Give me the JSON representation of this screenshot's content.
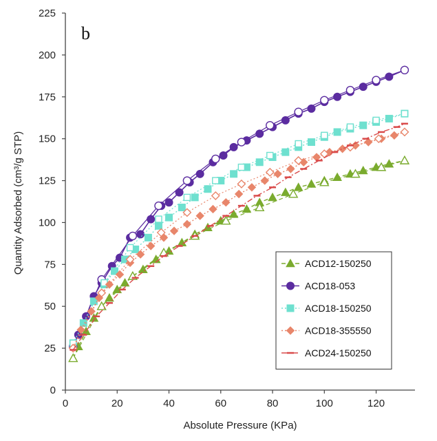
{
  "chart_data": {
    "type": "line",
    "panel_label": "b",
    "xlabel": "Absolute Pressure (KPa)",
    "ylabel": "Quantity Adsorbed (cm³/g STP)",
    "xlim": [
      0,
      135
    ],
    "ylim": [
      0,
      225
    ],
    "xticks": [
      0,
      20,
      40,
      60,
      80,
      100,
      120
    ],
    "yticks": [
      0,
      25,
      50,
      75,
      100,
      125,
      150,
      175,
      200,
      225
    ],
    "grid": false,
    "legend_position": "bottom-right",
    "series": [
      {
        "name": "ACD12-150250",
        "color": "#7aab2e",
        "marker": "triangle",
        "line_style": "dash",
        "adsorption": [
          [
            3,
            19
          ],
          [
            5,
            26
          ],
          [
            8,
            35
          ],
          [
            11,
            43
          ],
          [
            14,
            50
          ],
          [
            17,
            55
          ],
          [
            20,
            60
          ],
          [
            23,
            64
          ],
          [
            26,
            68
          ],
          [
            30,
            72
          ],
          [
            35,
            78
          ],
          [
            40,
            83
          ],
          [
            45,
            88
          ],
          [
            50,
            93
          ],
          [
            55,
            97
          ],
          [
            60,
            101
          ],
          [
            65,
            105
          ],
          [
            70,
            108
          ],
          [
            75,
            112
          ],
          [
            80,
            115
          ],
          [
            85,
            118
          ],
          [
            90,
            121
          ],
          [
            95,
            123
          ],
          [
            100,
            125
          ],
          [
            105,
            127
          ],
          [
            110,
            129
          ],
          [
            115,
            131
          ],
          [
            120,
            133
          ],
          [
            125,
            135
          ],
          [
            131,
            137
          ]
        ],
        "desorption": [
          [
            3,
            19
          ],
          [
            14,
            50
          ],
          [
            26,
            68
          ],
          [
            38,
            82
          ],
          [
            50,
            92
          ],
          [
            62,
            101
          ],
          [
            75,
            109
          ],
          [
            88,
            117
          ],
          [
            100,
            124
          ],
          [
            112,
            129
          ],
          [
            122,
            133
          ],
          [
            131,
            137
          ]
        ]
      },
      {
        "name": "ACD18-053",
        "color": "#5b2ca0",
        "marker": "circle",
        "line_style": "solid",
        "adsorption": [
          [
            3,
            26
          ],
          [
            5,
            33
          ],
          [
            8,
            44
          ],
          [
            11,
            56
          ],
          [
            14,
            64
          ],
          [
            18,
            74
          ],
          [
            21,
            79
          ],
          [
            25,
            91
          ],
          [
            29,
            93
          ],
          [
            33,
            102
          ],
          [
            37,
            110
          ],
          [
            40,
            112
          ],
          [
            44,
            118
          ],
          [
            48,
            124
          ],
          [
            52,
            129
          ],
          [
            57,
            136
          ],
          [
            61,
            140
          ],
          [
            65,
            145
          ],
          [
            70,
            149
          ],
          [
            75,
            153
          ],
          [
            80,
            157
          ],
          [
            85,
            161
          ],
          [
            90,
            165
          ],
          [
            95,
            168
          ],
          [
            100,
            172
          ],
          [
            105,
            175
          ],
          [
            110,
            178
          ],
          [
            115,
            181
          ],
          [
            120,
            184
          ],
          [
            125,
            187
          ],
          [
            131,
            191
          ]
        ],
        "desorption": [
          [
            3,
            26
          ],
          [
            14,
            66
          ],
          [
            26,
            92
          ],
          [
            36,
            110
          ],
          [
            47,
            125
          ],
          [
            58,
            138
          ],
          [
            68,
            148
          ],
          [
            79,
            158
          ],
          [
            90,
            166
          ],
          [
            100,
            173
          ],
          [
            110,
            179
          ],
          [
            120,
            185
          ],
          [
            131,
            191
          ]
        ]
      },
      {
        "name": "ACD18-150250",
        "color": "#6ee0cf",
        "marker": "square",
        "line_style": "dotted",
        "adsorption": [
          [
            3,
            28
          ],
          [
            7,
            40
          ],
          [
            11,
            53
          ],
          [
            15,
            63
          ],
          [
            19,
            71
          ],
          [
            23,
            78
          ],
          [
            27,
            84
          ],
          [
            32,
            91
          ],
          [
            36,
            98
          ],
          [
            40,
            103
          ],
          [
            45,
            109
          ],
          [
            50,
            115
          ],
          [
            55,
            120
          ],
          [
            60,
            125
          ],
          [
            65,
            129
          ],
          [
            70,
            133
          ],
          [
            75,
            136
          ],
          [
            80,
            139
          ],
          [
            85,
            142
          ],
          [
            90,
            145
          ],
          [
            95,
            148
          ],
          [
            100,
            151
          ],
          [
            105,
            154
          ],
          [
            110,
            156
          ],
          [
            115,
            158
          ],
          [
            120,
            160
          ],
          [
            125,
            162
          ],
          [
            131,
            165
          ]
        ],
        "desorption": [
          [
            3,
            28
          ],
          [
            15,
            64
          ],
          [
            25,
            85
          ],
          [
            36,
            102
          ],
          [
            47,
            115
          ],
          [
            58,
            125
          ],
          [
            68,
            133
          ],
          [
            79,
            140
          ],
          [
            90,
            147
          ],
          [
            100,
            152
          ],
          [
            110,
            157
          ],
          [
            120,
            161
          ],
          [
            131,
            165
          ]
        ]
      },
      {
        "name": "ACD18-355550",
        "color": "#e8866b",
        "marker": "diamond",
        "line_style": "dotted",
        "adsorption": [
          [
            3,
            25
          ],
          [
            6,
            36
          ],
          [
            10,
            47
          ],
          [
            13,
            55
          ],
          [
            17,
            63
          ],
          [
            21,
            69
          ],
          [
            25,
            76
          ],
          [
            29,
            81
          ],
          [
            33,
            86
          ],
          [
            38,
            91
          ],
          [
            42,
            95
          ],
          [
            47,
            99
          ],
          [
            52,
            104
          ],
          [
            57,
            108
          ],
          [
            62,
            112
          ],
          [
            67,
            117
          ],
          [
            72,
            121
          ],
          [
            77,
            125
          ],
          [
            82,
            129
          ],
          [
            87,
            132
          ],
          [
            92,
            136
          ],
          [
            97,
            139
          ],
          [
            102,
            142
          ],
          [
            107,
            144
          ],
          [
            112,
            146
          ],
          [
            117,
            148
          ],
          [
            122,
            150
          ],
          [
            127,
            152
          ],
          [
            131,
            154
          ]
        ],
        "desorption": [
          [
            3,
            25
          ],
          [
            14,
            58
          ],
          [
            25,
            78
          ],
          [
            37,
            94
          ],
          [
            47,
            106
          ],
          [
            58,
            116
          ],
          [
            68,
            123
          ],
          [
            79,
            130
          ],
          [
            90,
            137
          ],
          [
            100,
            141
          ],
          [
            110,
            145
          ],
          [
            121,
            150
          ],
          [
            131,
            154
          ]
        ]
      },
      {
        "name": "ACD24-150250",
        "color": "#d94a4a",
        "marker": "dash",
        "line_style": "dashdot",
        "adsorption": [
          [
            3,
            24
          ],
          [
            7,
            33
          ],
          [
            12,
            44
          ],
          [
            17,
            52
          ],
          [
            22,
            60
          ],
          [
            27,
            67
          ],
          [
            33,
            74
          ],
          [
            38,
            80
          ],
          [
            44,
            86
          ],
          [
            50,
            92
          ],
          [
            56,
            98
          ],
          [
            62,
            104
          ],
          [
            68,
            110
          ],
          [
            74,
            116
          ],
          [
            80,
            121
          ],
          [
            86,
            127
          ],
          [
            92,
            132
          ],
          [
            98,
            137
          ],
          [
            104,
            142
          ],
          [
            110,
            146
          ],
          [
            116,
            150
          ],
          [
            122,
            154
          ],
          [
            128,
            157
          ],
          [
            131,
            159
          ]
        ],
        "desorption": []
      }
    ]
  }
}
